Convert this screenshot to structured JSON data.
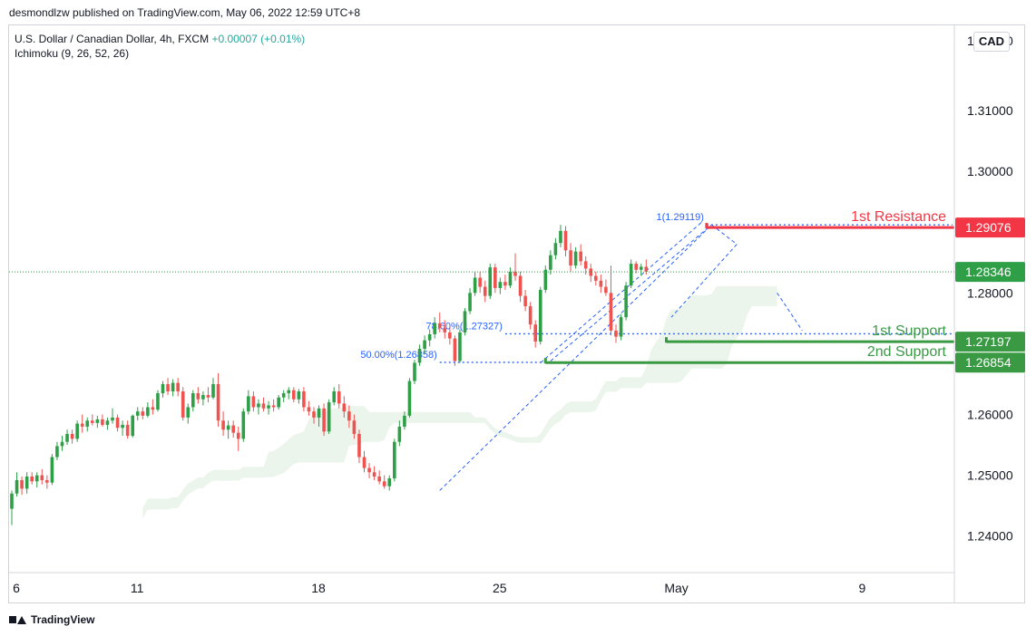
{
  "header": {
    "publisher_line": "desmondlzw published on TradingView.com, May 06, 2022 12:59 UTC+8"
  },
  "legend": {
    "symbol": "U.S. Dollar / Canadian Dollar, 4h, FXCM",
    "change": "+0.00007 (+0.01%)",
    "indicator": "Ichimoku (9, 26, 52, 26)"
  },
  "currency_badge": "CAD",
  "footer": {
    "brand": "TradingView"
  },
  "colors": {
    "up": "#26a69a",
    "up_candle": "#2e9f47",
    "down": "#ef5350",
    "resistance": "#f23645",
    "support": "#3a9a44",
    "fib": "#2962ff"
  },
  "chart_data": {
    "type": "candlestick",
    "title": "U.S. Dollar / Canadian Dollar, 4h, FXCM",
    "ylim": [
      1.234,
      1.324
    ],
    "y_ticks": [
      "1.31000",
      "1.30000",
      "1.28000",
      "1.26000",
      "1.25000",
      "1.24000"
    ],
    "x_ticks": [
      {
        "label": "6",
        "bar": 0
      },
      {
        "label": "11",
        "bar": 24
      },
      {
        "label": "18",
        "bar": 60
      },
      {
        "label": "25",
        "bar": 96
      },
      {
        "label": "May",
        "bar": 132
      },
      {
        "label": "9",
        "bar": 168
      }
    ],
    "current_price": {
      "value": 1.28346,
      "label": "1.28346"
    },
    "levels": [
      {
        "name": "1st Resistance",
        "value": 1.29076,
        "label": "1.29076",
        "kind": "resistance",
        "from_bar": 138
      },
      {
        "name": "1st Support",
        "value": 1.27197,
        "label": "1.27197",
        "kind": "support",
        "from_bar": 130
      },
      {
        "name": "2nd Support",
        "value": 1.26854,
        "label": "1.26854",
        "kind": "support",
        "from_bar": 106
      }
    ],
    "fib_labels": [
      {
        "text": "1(1.29119)",
        "value": 1.29119,
        "from_bar": 138
      },
      {
        "text": "78.60%(1.27327)",
        "value": 1.27327,
        "from_bar": 98
      },
      {
        "text": "50.00%(1.26858)",
        "value": 1.26858,
        "from_bar": 85
      }
    ],
    "fib_anchors": [
      {
        "bar": 85,
        "price": 1.2475
      },
      {
        "bar": 139,
        "price": 1.2912
      }
    ],
    "candles": [
      [
        1.2445,
        1.2475,
        1.2418,
        1.247
      ],
      [
        1.247,
        1.2505,
        1.2465,
        1.2492
      ],
      [
        1.2492,
        1.2498,
        1.2468,
        1.2478
      ],
      [
        1.2478,
        1.2505,
        1.247,
        1.2498
      ],
      [
        1.2498,
        1.2505,
        1.2485,
        1.249
      ],
      [
        1.249,
        1.2505,
        1.248,
        1.25
      ],
      [
        1.25,
        1.251,
        1.2485,
        1.2492
      ],
      [
        1.2492,
        1.25,
        1.2478,
        1.2488
      ],
      [
        1.2488,
        1.2535,
        1.2484,
        1.253
      ],
      [
        1.253,
        1.2555,
        1.2525,
        1.2548
      ],
      [
        1.2548,
        1.2565,
        1.254,
        1.2555
      ],
      [
        1.2555,
        1.2575,
        1.255,
        1.2568
      ],
      [
        1.2568,
        1.2575,
        1.2552,
        1.256
      ],
      [
        1.256,
        1.259,
        1.2555,
        1.2585
      ],
      [
        1.2585,
        1.26,
        1.257,
        1.258
      ],
      [
        1.258,
        1.2595,
        1.2572,
        1.259
      ],
      [
        1.259,
        1.26,
        1.2582,
        1.2586
      ],
      [
        1.2586,
        1.2598,
        1.2578,
        1.2592
      ],
      [
        1.2592,
        1.26,
        1.258,
        1.2583
      ],
      [
        1.2583,
        1.2595,
        1.2575,
        1.259
      ],
      [
        1.259,
        1.261,
        1.2585,
        1.2595
      ],
      [
        1.2595,
        1.26,
        1.2572,
        1.2578
      ],
      [
        1.2578,
        1.259,
        1.2565,
        1.2583
      ],
      [
        1.2583,
        1.259,
        1.256,
        1.2565
      ],
      [
        1.2565,
        1.26,
        1.2562,
        1.2598
      ],
      [
        1.2598,
        1.2612,
        1.259,
        1.2605
      ],
      [
        1.2605,
        1.2612,
        1.2592,
        1.2598
      ],
      [
        1.2598,
        1.262,
        1.2595,
        1.2612
      ],
      [
        1.2612,
        1.2625,
        1.26,
        1.2608
      ],
      [
        1.2608,
        1.264,
        1.2605,
        1.2635
      ],
      [
        1.2635,
        1.2655,
        1.2628,
        1.265
      ],
      [
        1.265,
        1.266,
        1.2632,
        1.2638
      ],
      [
        1.2638,
        1.2658,
        1.263,
        1.2652
      ],
      [
        1.2652,
        1.266,
        1.263,
        1.2638
      ],
      [
        1.2638,
        1.2645,
        1.259,
        1.2595
      ],
      [
        1.2595,
        1.2618,
        1.2585,
        1.2612
      ],
      [
        1.2612,
        1.264,
        1.2605,
        1.2635
      ],
      [
        1.2635,
        1.2645,
        1.2618,
        1.2625
      ],
      [
        1.2625,
        1.2638,
        1.2615,
        1.2632
      ],
      [
        1.2632,
        1.2645,
        1.262,
        1.2628
      ],
      [
        1.2628,
        1.266,
        1.2625,
        1.265
      ],
      [
        1.265,
        1.2668,
        1.258,
        1.259
      ],
      [
        1.259,
        1.2605,
        1.2565,
        1.2575
      ],
      [
        1.2575,
        1.259,
        1.256,
        1.2582
      ],
      [
        1.2582,
        1.259,
        1.2562,
        1.257
      ],
      [
        1.257,
        1.258,
        1.254,
        1.256
      ],
      [
        1.256,
        1.261,
        1.2555,
        1.2605
      ],
      [
        1.2605,
        1.264,
        1.26,
        1.263
      ],
      [
        1.263,
        1.2638,
        1.2605,
        1.2612
      ],
      [
        1.2612,
        1.2625,
        1.26,
        1.2618
      ],
      [
        1.2618,
        1.2628,
        1.2605,
        1.261
      ],
      [
        1.261,
        1.2622,
        1.26,
        1.2615
      ],
      [
        1.2615,
        1.2625,
        1.2605,
        1.2612
      ],
      [
        1.2612,
        1.2632,
        1.2608,
        1.2628
      ],
      [
        1.2628,
        1.264,
        1.262,
        1.2635
      ],
      [
        1.2635,
        1.2645,
        1.2625,
        1.264
      ],
      [
        1.264,
        1.2645,
        1.262,
        1.2625
      ],
      [
        1.2625,
        1.2642,
        1.2618,
        1.2638
      ],
      [
        1.2638,
        1.2645,
        1.2605,
        1.2612
      ],
      [
        1.2612,
        1.2622,
        1.2598,
        1.2605
      ],
      [
        1.2605,
        1.2612,
        1.2585,
        1.2595
      ],
      [
        1.2595,
        1.2615,
        1.258,
        1.261
      ],
      [
        1.261,
        1.2618,
        1.2565,
        1.2572
      ],
      [
        1.2572,
        1.2625,
        1.2568,
        1.262
      ],
      [
        1.262,
        1.2645,
        1.2615,
        1.2638
      ],
      [
        1.2638,
        1.265,
        1.261,
        1.2618
      ],
      [
        1.2618,
        1.263,
        1.2595,
        1.2605
      ],
      [
        1.2605,
        1.2615,
        1.2578,
        1.259
      ],
      [
        1.259,
        1.26,
        1.256,
        1.2568
      ],
      [
        1.2568,
        1.2575,
        1.252,
        1.253
      ],
      [
        1.253,
        1.254,
        1.2505,
        1.2512
      ],
      [
        1.2512,
        1.252,
        1.2495,
        1.2505
      ],
      [
        1.2505,
        1.2515,
        1.2492,
        1.2498
      ],
      [
        1.2498,
        1.2508,
        1.2485,
        1.249
      ],
      [
        1.249,
        1.25,
        1.2478,
        1.2482
      ],
      [
        1.2482,
        1.25,
        1.2475,
        1.2495
      ],
      [
        1.2495,
        1.256,
        1.249,
        1.2555
      ],
      [
        1.2555,
        1.259,
        1.2548,
        1.258
      ],
      [
        1.258,
        1.2605,
        1.2575,
        1.2598
      ],
      [
        1.2598,
        1.266,
        1.2595,
        1.2655
      ],
      [
        1.2655,
        1.269,
        1.265,
        1.2685
      ],
      [
        1.2685,
        1.2715,
        1.268,
        1.2708
      ],
      [
        1.2708,
        1.273,
        1.27,
        1.2722
      ],
      [
        1.2722,
        1.274,
        1.2712,
        1.2732
      ],
      [
        1.2732,
        1.276,
        1.2725,
        1.275
      ],
      [
        1.275,
        1.2768,
        1.2735,
        1.2742
      ],
      [
        1.2742,
        1.2755,
        1.2725,
        1.2735
      ],
      [
        1.2735,
        1.2745,
        1.2715,
        1.2725
      ],
      [
        1.2725,
        1.273,
        1.268,
        1.2688
      ],
      [
        1.2688,
        1.274,
        1.2685,
        1.2735
      ],
      [
        1.2735,
        1.2775,
        1.273,
        1.277
      ],
      [
        1.277,
        1.2808,
        1.2765,
        1.28
      ],
      [
        1.28,
        1.2835,
        1.2795,
        1.2825
      ],
      [
        1.2825,
        1.2835,
        1.28,
        1.281
      ],
      [
        1.281,
        1.282,
        1.2785,
        1.2795
      ],
      [
        1.2795,
        1.2848,
        1.279,
        1.2842
      ],
      [
        1.2842,
        1.2848,
        1.28,
        1.2808
      ],
      [
        1.2808,
        1.2825,
        1.2798,
        1.2818
      ],
      [
        1.2818,
        1.283,
        1.2805,
        1.2812
      ],
      [
        1.2812,
        1.2842,
        1.2808,
        1.2835
      ],
      [
        1.2835,
        1.2865,
        1.282,
        1.2828
      ],
      [
        1.2828,
        1.2835,
        1.2785,
        1.2795
      ],
      [
        1.2795,
        1.2805,
        1.277,
        1.2778
      ],
      [
        1.2778,
        1.2785,
        1.274,
        1.2748
      ],
      [
        1.2748,
        1.2755,
        1.271,
        1.272
      ],
      [
        1.272,
        1.281,
        1.2715,
        1.2805
      ],
      [
        1.2805,
        1.2845,
        1.28,
        1.2838
      ],
      [
        1.2838,
        1.287,
        1.283,
        1.2862
      ],
      [
        1.2862,
        1.289,
        1.2855,
        1.2882
      ],
      [
        1.2882,
        1.2912,
        1.2875,
        1.2902
      ],
      [
        1.2902,
        1.291,
        1.286,
        1.287
      ],
      [
        1.287,
        1.2882,
        1.2835,
        1.2845
      ],
      [
        1.2845,
        1.2875,
        1.284,
        1.2868
      ],
      [
        1.2868,
        1.288,
        1.2845,
        1.2852
      ],
      [
        1.2852,
        1.286,
        1.283,
        1.284
      ],
      [
        1.284,
        1.2848,
        1.2818,
        1.2828
      ],
      [
        1.2828,
        1.2835,
        1.2812,
        1.282
      ],
      [
        1.282,
        1.283,
        1.28,
        1.281
      ],
      [
        1.281,
        1.2822,
        1.2795,
        1.28
      ],
      [
        1.28,
        1.2845,
        1.273,
        1.2738
      ],
      [
        1.2738,
        1.2748,
        1.2718,
        1.2728
      ],
      [
        1.2728,
        1.2765,
        1.2722,
        1.276
      ],
      [
        1.276,
        1.2818,
        1.2755,
        1.2812
      ],
      [
        1.2812,
        1.2855,
        1.2808,
        1.2848
      ],
      [
        1.2848,
        1.2852,
        1.2832,
        1.2838
      ],
      [
        1.2838,
        1.2848,
        1.2828,
        1.2843
      ],
      [
        1.2843,
        1.2855,
        1.283,
        1.2835
      ]
    ]
  }
}
